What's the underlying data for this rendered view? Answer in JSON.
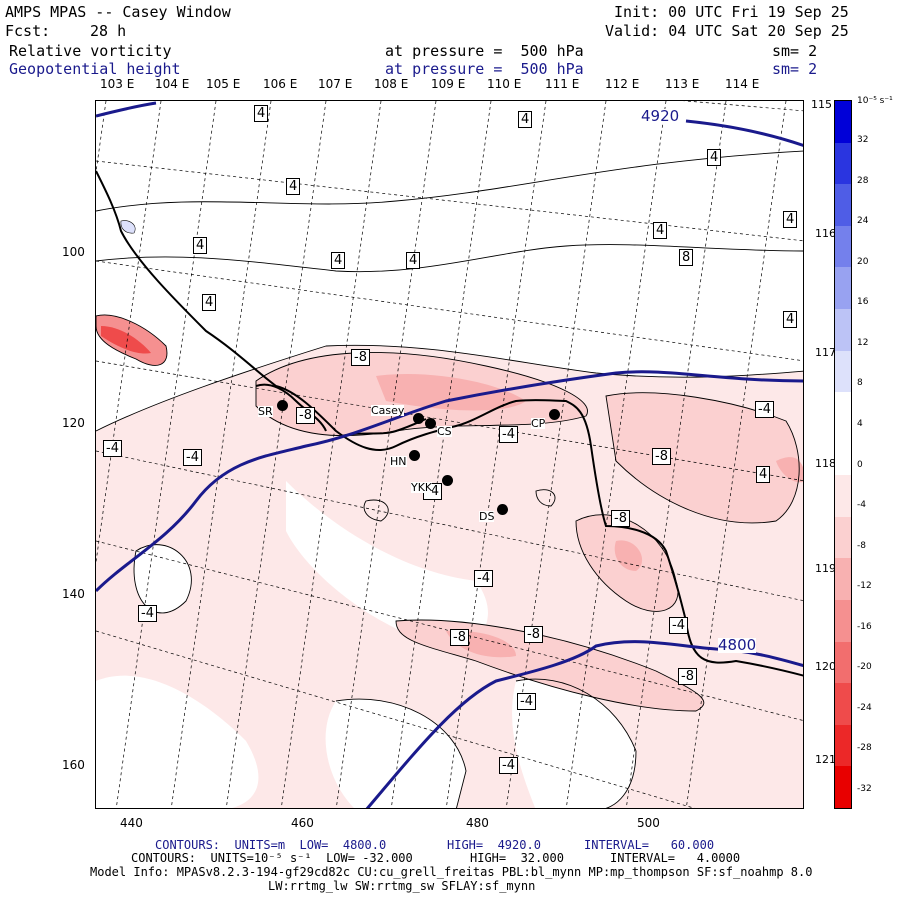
{
  "header": {
    "title": "AMPS MPAS -- Casey Window",
    "forecast_label": "Fcst:",
    "forecast_value": "28 h",
    "init": "Init: 00 UTC Fri 19 Sep 25",
    "valid": "Valid: 04 UTC Sat 20 Sep 25",
    "field1_name": "Relative vorticity",
    "field1_level": "at pressure =  500 hPa",
    "field1_smooth": "sm= 2",
    "field2_name": "Geopotential height",
    "field2_level": "at pressure =  500 hPa",
    "field2_smooth": "sm= 2"
  },
  "axes": {
    "x_ticks": [
      "440",
      "460",
      "480",
      "500"
    ],
    "y_ticks": [
      "100",
      "120",
      "140",
      "160"
    ],
    "lon_labels": [
      "103 E",
      "104 E",
      "105 E",
      "106 E",
      "107 E",
      "108 E",
      "109 E",
      "110 E",
      "111 E",
      "112 E",
      "113 E",
      "114 E"
    ],
    "lat_labels": [
      "115 E",
      "116 E",
      "117 E",
      "118 E",
      "119 E",
      "120 E",
      "121 E"
    ]
  },
  "colorbar": {
    "units": "10⁻⁵ s⁻¹",
    "labels": [
      "32",
      "28",
      "24",
      "20",
      "16",
      "12",
      "8",
      "4",
      "0",
      "-4",
      "-8",
      "-12",
      "-16",
      "-20",
      "-24",
      "-28",
      "-32"
    ],
    "colors": [
      "#0000d8",
      "#2a35e0",
      "#4f5de6",
      "#7480ec",
      "#98a2f1",
      "#bcc3f6",
      "#dde1fb",
      "#ffffff",
      "#ffffff",
      "#fde8e8",
      "#fbd0d0",
      "#f8b1b1",
      "#f59090",
      "#f26e6e",
      "#ef4b4b",
      "#ec2828",
      "#e80000"
    ]
  },
  "geopotential": {
    "contour_labels": [
      "4920",
      "4800"
    ]
  },
  "vorticity": {
    "contour_labels": [
      "4",
      "4",
      "4",
      "4",
      "4",
      "4",
      "4",
      "4",
      "4",
      "4",
      "8",
      "4",
      "4",
      "-8",
      "-8",
      "-4",
      "-4",
      "-4",
      "-4",
      "-8",
      "-4",
      "-4",
      "-8",
      "-4",
      "-8",
      "-8",
      "-4",
      "-8",
      "-4",
      "-4",
      "-4",
      "-4"
    ]
  },
  "stations": [
    "SR",
    "Casey",
    "CS",
    "CP",
    "HN",
    "YKK",
    "DS"
  ],
  "footer": {
    "line1_prefix": "CONTOURS:  UNITS=m  LOW=  4800.0",
    "line1_high": "HIGH=  4920.0",
    "line1_interval": "INTERVAL=   60.000",
    "line2_prefix": "CONTOURS:  UNITS=10⁻⁵ s⁻¹  LOW= -32.000",
    "line2_high": "HIGH=  32.000",
    "line2_interval": "INTERVAL=   4.0000",
    "model_info": "Model Info: MPASv8.2.3-194-gf29cd82c CU:cu_grell_freitas PBL:bl_mynn MP:mp_thompson SF:sf_noahmp 8.0",
    "model_info2": "LW:rrtmg_lw SW:rrtmg_sw SFLAY:sf_mynn"
  }
}
